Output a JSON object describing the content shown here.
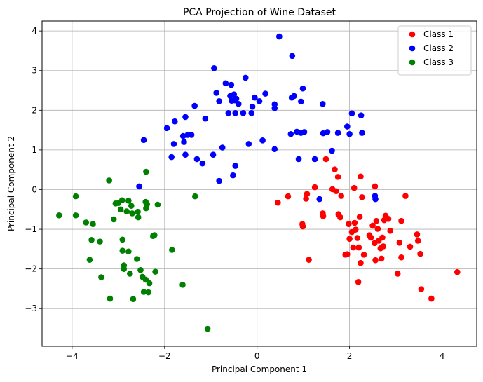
{
  "chart_data": {
    "type": "scatter",
    "title": "PCA Projection of Wine Dataset",
    "xlabel": "Principal Component 1",
    "ylabel": "Principal Component 2",
    "xlim": [
      -4.65,
      4.75
    ],
    "ylim": [
      -3.95,
      4.25
    ],
    "xticks": [
      -4,
      -2,
      0,
      2,
      4
    ],
    "yticks": [
      -3,
      -2,
      -1,
      0,
      1,
      2,
      3,
      4
    ],
    "grid": true,
    "legend_position": "top-right",
    "series": [
      {
        "name": "Class 1",
        "color": "#ff0000",
        "points": [
          [
            0.45,
            -0.33
          ],
          [
            0.67,
            -0.17
          ],
          [
            0.98,
            -0.87
          ],
          [
            0.99,
            -0.93
          ],
          [
            1.06,
            -0.23
          ],
          [
            1.08,
            -0.11
          ],
          [
            1.12,
            -1.77
          ],
          [
            1.25,
            0.06
          ],
          [
            1.42,
            -0.6
          ],
          [
            1.43,
            -0.67
          ],
          [
            1.49,
            0.77
          ],
          [
            1.63,
            0.01
          ],
          [
            1.68,
            0.51
          ],
          [
            1.71,
            -0.04
          ],
          [
            1.75,
            0.32
          ],
          [
            1.76,
            -0.62
          ],
          [
            1.8,
            -0.7
          ],
          [
            1.82,
            -0.16
          ],
          [
            1.91,
            -1.64
          ],
          [
            1.95,
            -1.63
          ],
          [
            1.98,
            -0.87
          ],
          [
            2.0,
            -1.24
          ],
          [
            2.05,
            -1.07
          ],
          [
            2.08,
            -1.46
          ],
          [
            2.1,
            0.04
          ],
          [
            2.11,
            -0.84
          ],
          [
            2.13,
            -1.01
          ],
          [
            2.17,
            -1.22
          ],
          [
            2.19,
            -2.33
          ],
          [
            2.2,
            -1.46
          ],
          [
            2.22,
            -0.69
          ],
          [
            2.24,
            0.33
          ],
          [
            2.24,
            -1.85
          ],
          [
            2.27,
            -0.19
          ],
          [
            2.31,
            -1.64
          ],
          [
            2.43,
            -1.15
          ],
          [
            2.46,
            -1.21
          ],
          [
            2.5,
            -0.91
          ],
          [
            2.54,
            -1.35
          ],
          [
            2.55,
            0.08
          ],
          [
            2.56,
            -1.78
          ],
          [
            2.58,
            -0.79
          ],
          [
            2.61,
            -0.99
          ],
          [
            2.63,
            -1.29
          ],
          [
            2.67,
            -1.48
          ],
          [
            2.69,
            -1.74
          ],
          [
            2.71,
            -1.21
          ],
          [
            2.73,
            -1.43
          ],
          [
            2.75,
            -0.77
          ],
          [
            2.78,
            -0.66
          ],
          [
            2.84,
            -0.74
          ],
          [
            2.88,
            -1.04
          ],
          [
            3.04,
            -2.12
          ],
          [
            3.08,
            -1.34
          ],
          [
            3.12,
            -1.71
          ],
          [
            3.12,
            -0.79
          ],
          [
            3.21,
            -0.16
          ],
          [
            3.31,
            -1.44
          ],
          [
            3.46,
            -1.13
          ],
          [
            3.48,
            -1.29
          ],
          [
            3.53,
            -1.62
          ],
          [
            3.55,
            -2.51
          ],
          [
            3.77,
            -2.75
          ],
          [
            4.33,
            -2.08
          ]
        ]
      },
      {
        "name": "Class 2",
        "color": "#0000ff",
        "points": [
          [
            -2.55,
            0.08
          ],
          [
            -2.45,
            1.25
          ],
          [
            -1.95,
            1.55
          ],
          [
            -1.85,
            0.82
          ],
          [
            -1.8,
            1.15
          ],
          [
            -1.78,
            1.72
          ],
          [
            -1.6,
            1.35
          ],
          [
            -1.58,
            1.2
          ],
          [
            -1.55,
            0.88
          ],
          [
            -1.55,
            1.83
          ],
          [
            -1.5,
            1.38
          ],
          [
            -1.42,
            1.38
          ],
          [
            -1.35,
            2.11
          ],
          [
            -1.3,
            0.77
          ],
          [
            -1.18,
            0.66
          ],
          [
            -1.12,
            1.79
          ],
          [
            -0.95,
            0.88
          ],
          [
            -0.93,
            3.06
          ],
          [
            -0.88,
            2.44
          ],
          [
            -0.82,
            0.22
          ],
          [
            -0.82,
            2.23
          ],
          [
            -0.75,
            1.06
          ],
          [
            -0.68,
            2.68
          ],
          [
            -0.62,
            1.93
          ],
          [
            -0.58,
            2.36
          ],
          [
            -0.56,
            2.64
          ],
          [
            -0.55,
            2.24
          ],
          [
            -0.52,
            0.36
          ],
          [
            -0.5,
            2.4
          ],
          [
            -0.48,
            2.25
          ],
          [
            -0.47,
            0.6
          ],
          [
            -0.47,
            1.93
          ],
          [
            -0.45,
            2.29
          ],
          [
            -0.4,
            2.16
          ],
          [
            -0.3,
            1.93
          ],
          [
            -0.25,
            2.82
          ],
          [
            -0.18,
            1.15
          ],
          [
            -0.12,
            1.93
          ],
          [
            -0.1,
            2.09
          ],
          [
            -0.05,
            2.32
          ],
          [
            0.05,
            2.23
          ],
          [
            0.12,
            1.24
          ],
          [
            0.18,
            2.42
          ],
          [
            0.38,
            1.02
          ],
          [
            0.38,
            2.15
          ],
          [
            0.38,
            2.05
          ],
          [
            0.48,
            3.86
          ],
          [
            0.73,
            1.4
          ],
          [
            0.75,
            2.32
          ],
          [
            0.76,
            3.37
          ],
          [
            0.8,
            2.36
          ],
          [
            0.86,
            1.46
          ],
          [
            0.9,
            0.77
          ],
          [
            0.95,
            1.43
          ],
          [
            0.95,
            2.22
          ],
          [
            0.99,
            2.55
          ],
          [
            1.02,
            1.45
          ],
          [
            1.25,
            0.77
          ],
          [
            1.35,
            -0.24
          ],
          [
            1.42,
            2.16
          ],
          [
            1.43,
            1.42
          ],
          [
            1.52,
            1.45
          ],
          [
            1.62,
            0.98
          ],
          [
            1.75,
            1.43
          ],
          [
            1.95,
            1.59
          ],
          [
            2.0,
            1.4
          ],
          [
            2.05,
            1.92
          ],
          [
            2.25,
            1.87
          ],
          [
            2.27,
            1.43
          ],
          [
            2.55,
            -0.16
          ],
          [
            2.56,
            -0.24
          ]
        ]
      },
      {
        "name": "Class 3",
        "color": "#008000",
        "points": [
          [
            -4.28,
            -0.65
          ],
          [
            -3.92,
            -0.17
          ],
          [
            -3.92,
            -0.65
          ],
          [
            -3.7,
            -0.83
          ],
          [
            -3.62,
            -1.77
          ],
          [
            -3.58,
            -1.27
          ],
          [
            -3.55,
            -0.87
          ],
          [
            -3.4,
            -1.31
          ],
          [
            -3.37,
            -2.21
          ],
          [
            -3.2,
            0.23
          ],
          [
            -3.18,
            -2.75
          ],
          [
            -3.1,
            -0.75
          ],
          [
            -3.06,
            -0.35
          ],
          [
            -3.0,
            -0.34
          ],
          [
            -2.95,
            -0.5
          ],
          [
            -2.92,
            -0.27
          ],
          [
            -2.91,
            -1.54
          ],
          [
            -2.91,
            -1.26
          ],
          [
            -2.88,
            -1.91
          ],
          [
            -2.88,
            -2.0
          ],
          [
            -2.82,
            -0.55
          ],
          [
            -2.78,
            -1.56
          ],
          [
            -2.78,
            -0.28
          ],
          [
            -2.75,
            -2.12
          ],
          [
            -2.72,
            -0.41
          ],
          [
            -2.7,
            -0.6
          ],
          [
            -2.68,
            -2.76
          ],
          [
            -2.6,
            -1.75
          ],
          [
            -2.58,
            -0.56
          ],
          [
            -2.57,
            -0.7
          ],
          [
            -2.52,
            -2.03
          ],
          [
            -2.48,
            -2.2
          ],
          [
            -2.45,
            -2.58
          ],
          [
            -2.41,
            -2.27
          ],
          [
            -2.41,
            -0.31
          ],
          [
            -2.4,
            -0.47
          ],
          [
            -2.4,
            0.45
          ],
          [
            -2.38,
            -0.37
          ],
          [
            -2.35,
            -2.59
          ],
          [
            -2.33,
            -2.36
          ],
          [
            -2.25,
            -1.17
          ],
          [
            -2.22,
            -1.15
          ],
          [
            -2.2,
            -2.07
          ],
          [
            -2.15,
            -0.38
          ],
          [
            -1.84,
            -1.52
          ],
          [
            -1.61,
            -2.4
          ],
          [
            -1.34,
            -0.17
          ],
          [
            -1.07,
            -3.51
          ]
        ]
      }
    ]
  }
}
